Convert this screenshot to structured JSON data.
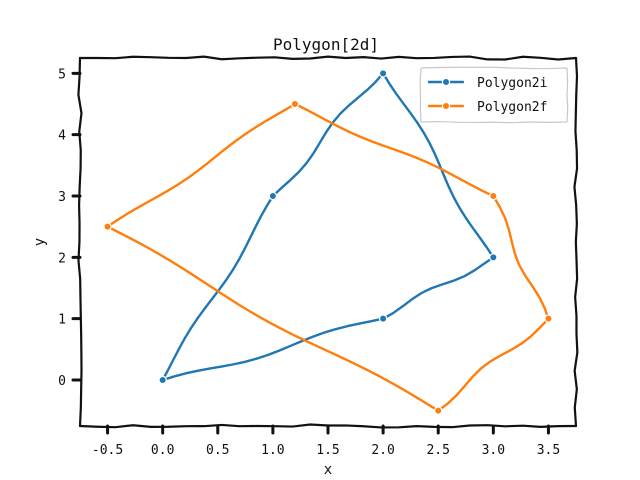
{
  "chart_data": {
    "type": "line",
    "title": "Polygon[2d]",
    "xlabel": "x",
    "ylabel": "y",
    "xlim": [
      -0.75,
      3.75
    ],
    "ylim": [
      -0.75,
      5.25
    ],
    "xticks": [
      -0.5,
      0.0,
      0.5,
      1.0,
      1.5,
      2.0,
      2.5,
      3.0,
      3.5
    ],
    "xtick_labels": [
      "-0.5",
      "0.0",
      "0.5",
      "1.0",
      "1.5",
      "2.0",
      "2.5",
      "3.0",
      "3.5"
    ],
    "yticks": [
      0,
      1,
      2,
      3,
      4,
      5
    ],
    "ytick_labels": [
      "0",
      "1",
      "2",
      "3",
      "4",
      "5"
    ],
    "grid": false,
    "legend_position": "top-right",
    "style": "xkcd",
    "series": [
      {
        "name": "Polygon2i",
        "color": "#1f77b4",
        "closed": true,
        "points": [
          [
            0,
            0
          ],
          [
            1,
            3
          ],
          [
            2,
            5
          ],
          [
            3,
            2
          ],
          [
            2,
            1
          ]
        ]
      },
      {
        "name": "Polygon2f",
        "color": "#ff7f0e",
        "closed": true,
        "points": [
          [
            -0.5,
            2.5
          ],
          [
            1.2,
            4.5
          ],
          [
            3.0,
            3.0
          ],
          [
            3.5,
            1.0
          ],
          [
            2.5,
            -0.5
          ]
        ]
      }
    ]
  }
}
